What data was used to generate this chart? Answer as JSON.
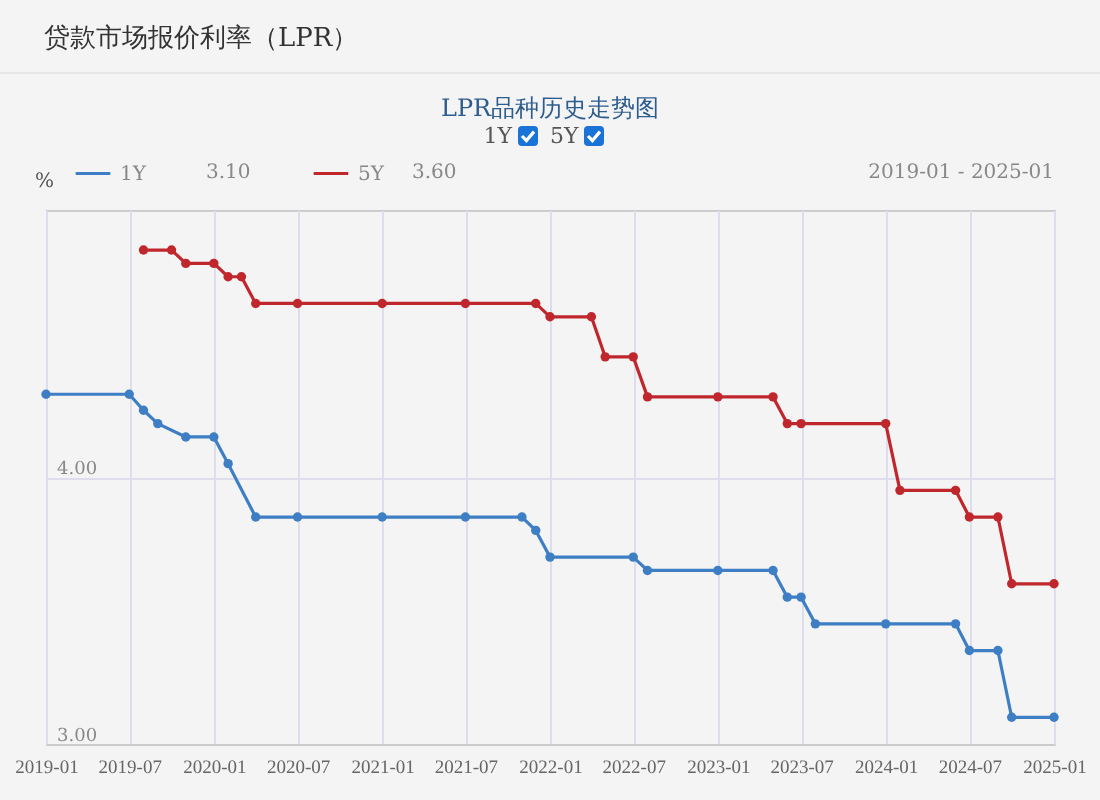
{
  "chart_data": {
    "type": "line",
    "title": "贷款市场报价利率（LPR）",
    "subtitle": "LPR品种历史走势图",
    "ylabel": "%",
    "annotations": [
      "1Y",
      "5Y",
      "3.10",
      "3.60",
      "2019-01 - 2025-01"
    ],
    "series": [
      {
        "name": "1Y",
        "color": "#3d7ec4",
        "x": [
          "2019-01",
          "2019-07",
          "2019-08",
          "2019-09",
          "2019-11",
          "2020-01",
          "2020-02",
          "2020-04",
          "2020-07",
          "2021-01",
          "2021-07",
          "2021-11",
          "2021-12",
          "2022-01",
          "2022-07",
          "2022-08",
          "2023-01",
          "2023-05",
          "2023-06",
          "2023-07",
          "2023-08",
          "2024-01",
          "2024-06",
          "2024-07",
          "2024-09",
          "2024-10",
          "2025-01"
        ],
        "values": [
          4.31,
          4.31,
          4.25,
          4.2,
          4.15,
          4.15,
          4.05,
          3.85,
          3.85,
          3.85,
          3.85,
          3.85,
          3.8,
          3.7,
          3.7,
          3.65,
          3.65,
          3.65,
          3.55,
          3.55,
          3.45,
          3.45,
          3.45,
          3.35,
          3.35,
          3.1,
          3.1
        ]
      },
      {
        "name": "5Y",
        "color": "#c0272d",
        "x": [
          "2019-08",
          "2019-10",
          "2019-11",
          "2020-01",
          "2020-02",
          "2020-03",
          "2020-04",
          "2020-07",
          "2021-01",
          "2021-07",
          "2021-12",
          "2022-01",
          "2022-04",
          "2022-05",
          "2022-07",
          "2022-08",
          "2023-01",
          "2023-05",
          "2023-06",
          "2023-07",
          "2024-01",
          "2024-02",
          "2024-06",
          "2024-07",
          "2024-09",
          "2024-10",
          "2025-01"
        ],
        "values": [
          4.85,
          4.85,
          4.8,
          4.8,
          4.75,
          4.75,
          4.65,
          4.65,
          4.65,
          4.65,
          4.65,
          4.6,
          4.6,
          4.45,
          4.45,
          4.3,
          4.3,
          4.3,
          4.2,
          4.2,
          4.2,
          3.95,
          3.95,
          3.85,
          3.85,
          3.6,
          3.6
        ]
      }
    ],
    "xlim": [
      "2019-01",
      "2025-01"
    ],
    "xticks": [
      "2019-01",
      "2019-07",
      "2020-01",
      "2020-07",
      "2021-01",
      "2021-07",
      "2022-01",
      "2022-07",
      "2023-01",
      "2023-07",
      "2024-01",
      "2024-07",
      "2025-01"
    ],
    "ylim": [
      3,
      5
    ],
    "yticks": [
      {
        "value": 3,
        "label": "3.00"
      },
      {
        "value": 4,
        "label": "4.00"
      }
    ],
    "grid": true,
    "legend": "top left",
    "marker": "circle",
    "line_style": "solid"
  }
}
